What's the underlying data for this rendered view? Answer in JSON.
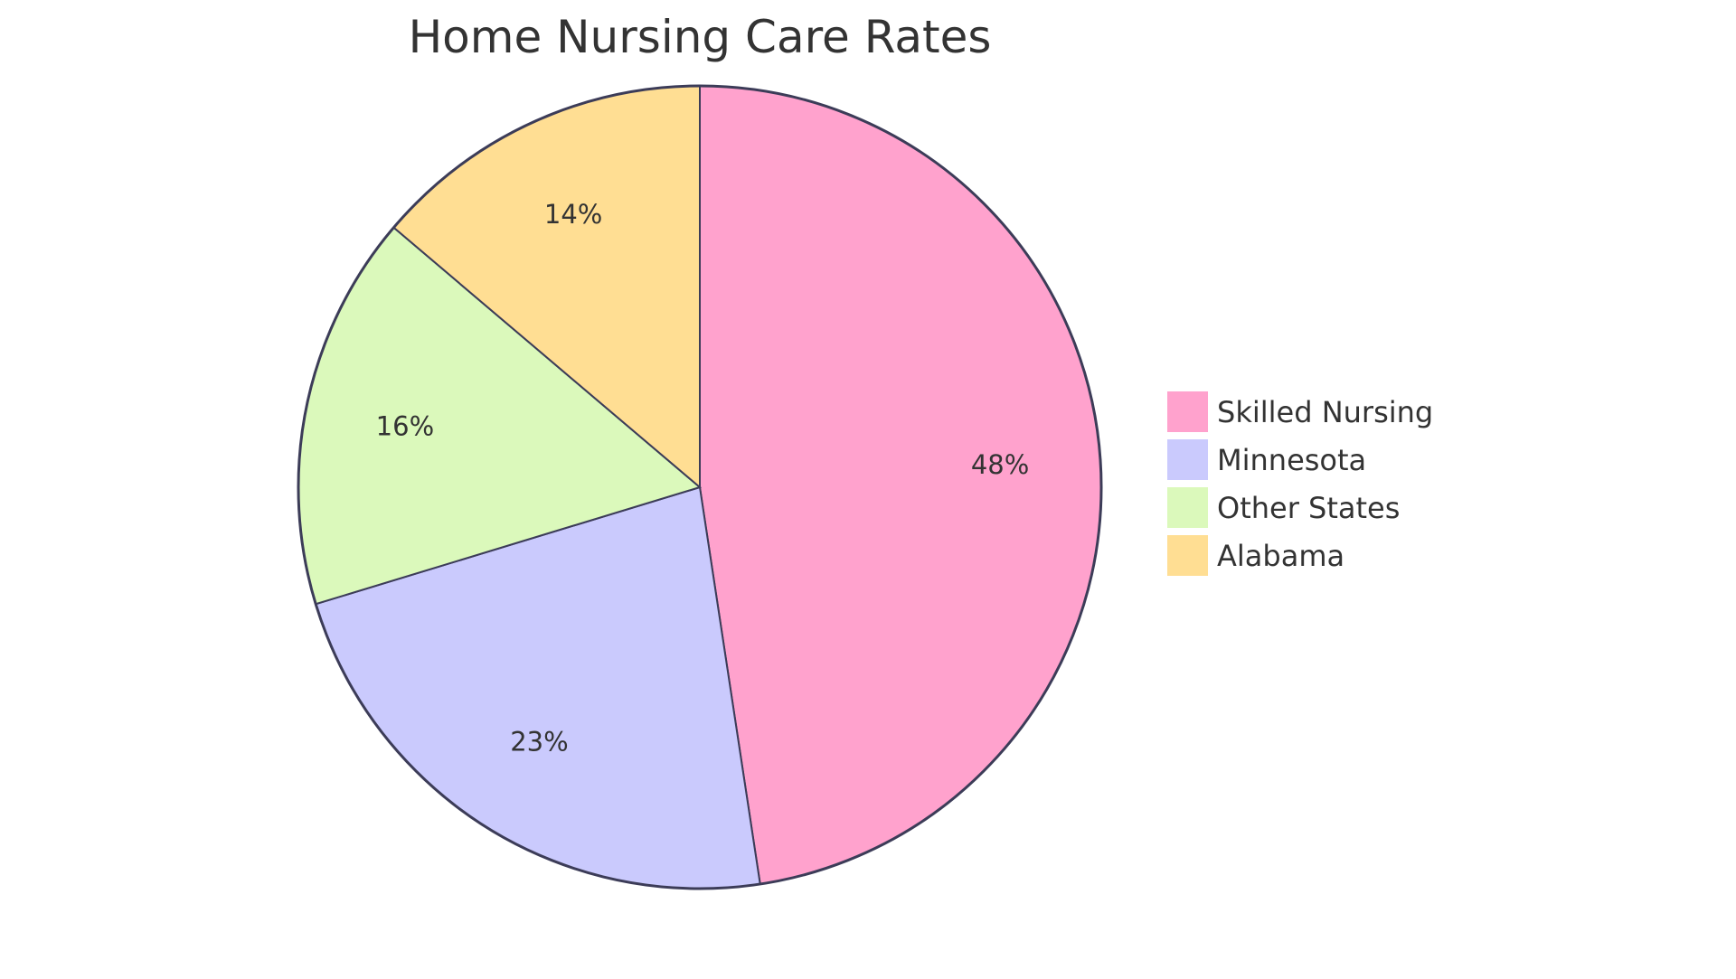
{
  "chart_data": {
    "type": "pie",
    "title": "Home Nursing Care Rates",
    "slices": [
      {
        "name": "Skilled Nursing",
        "value": 47.6,
        "label": "48%",
        "color": "#FFA2CD"
      },
      {
        "name": "Minnesota",
        "value": 22.7,
        "label": "23%",
        "color": "#CACAFD"
      },
      {
        "name": "Other States",
        "value": 15.9,
        "label": "16%",
        "color": "#DBF9BB"
      },
      {
        "name": "Alabama",
        "value": 13.8,
        "label": "14%",
        "color": "#FFDE93"
      }
    ],
    "legend_position": "right",
    "stroke_color": "#3C3C58"
  }
}
